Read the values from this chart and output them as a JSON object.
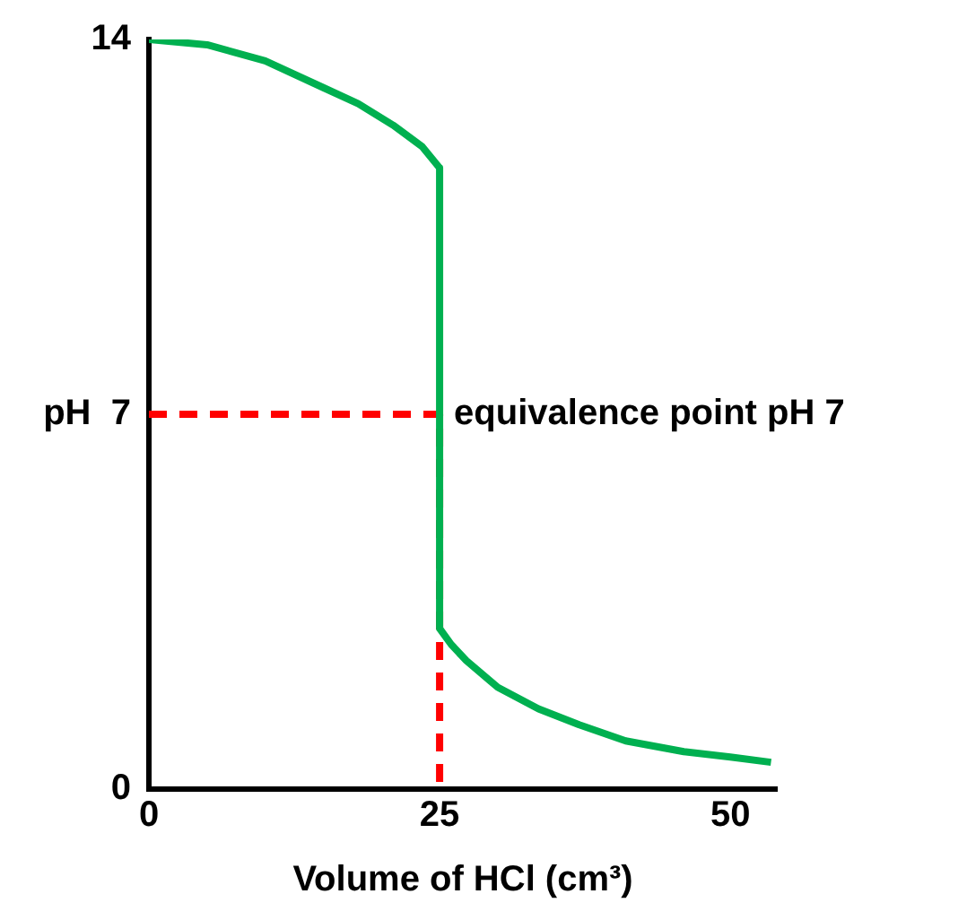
{
  "chart_data": {
    "type": "line",
    "xlabel": "Volume of HCl (cm³)",
    "xlim": [
      0,
      54
    ],
    "xticks": [
      0,
      25,
      50
    ],
    "ylim": [
      0,
      14
    ],
    "yticks": [
      0,
      {
        "value": 7,
        "label": "pH  7"
      },
      14
    ],
    "marker": "none",
    "series": [
      {
        "color": "#00b050",
        "line_style": "solid",
        "x": [
          0,
          5,
          10,
          15,
          18,
          21,
          23.5,
          25,
          25,
          26,
          27.3,
          30,
          33.5,
          37,
          41,
          46,
          50,
          53.5
        ],
        "values": [
          14,
          13.9,
          13.6,
          13.1,
          12.8,
          12.4,
          12,
          11.6,
          3.0,
          2.7,
          2.4,
          1.9,
          1.5,
          1.2,
          0.9,
          0.7,
          0.6,
          0.5
        ]
      },
      {
        "color": "#ff0000",
        "line_style": "dashed",
        "x": [
          0,
          25,
          25
        ],
        "values": [
          7,
          7,
          0
        ]
      }
    ],
    "annotations": [
      {
        "text": "equivalence point pH 7",
        "x": 25,
        "y": 7
      }
    ]
  }
}
